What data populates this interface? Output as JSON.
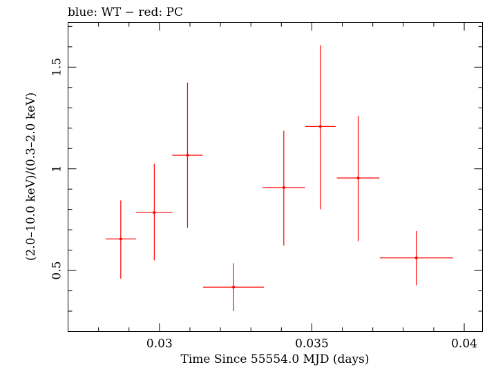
{
  "header": {
    "title": "blue: WT − red: PC"
  },
  "chart_data": {
    "type": "scatter",
    "title": "blue: WT − red: PC",
    "xlabel": "Time Since 55554.0 MJD (days)",
    "ylabel": "(2.0–10.0 keV)/(0.3–2.0 keV)",
    "xlim": [
      0.027,
      0.0406
    ],
    "ylim": [
      0.2,
      1.72
    ],
    "x_ticks": [
      {
        "value": 0.03,
        "label": "0.03"
      },
      {
        "value": 0.035,
        "label": "0.035"
      },
      {
        "value": 0.04,
        "label": "0.04"
      }
    ],
    "y_ticks": [
      {
        "value": 0.5,
        "label": "0.5"
      },
      {
        "value": 1.0,
        "label": "1"
      },
      {
        "value": 1.5,
        "label": "1.5"
      }
    ],
    "grid": false,
    "series": [
      {
        "color": "#ff0000",
        "points": [
          {
            "x": 0.02873,
            "y": 0.655,
            "xerr_low": 0.0005,
            "xerr_high": 0.0005,
            "yerr_low": 0.195,
            "yerr_high": 0.19
          },
          {
            "x": 0.02983,
            "y": 0.785,
            "xerr_low": 0.0006,
            "xerr_high": 0.0006,
            "yerr_low": 0.235,
            "yerr_high": 0.24
          },
          {
            "x": 0.03092,
            "y": 1.067,
            "xerr_low": 0.0005,
            "xerr_high": 0.0005,
            "yerr_low": 0.357,
            "yerr_high": 0.357
          },
          {
            "x": 0.03243,
            "y": 0.418,
            "xerr_low": 0.001,
            "xerr_high": 0.001,
            "yerr_low": 0.118,
            "yerr_high": 0.118
          },
          {
            "x": 0.03408,
            "y": 0.908,
            "xerr_low": 0.0007,
            "xerr_high": 0.0007,
            "yerr_low": 0.285,
            "yerr_high": 0.279
          },
          {
            "x": 0.03528,
            "y": 1.208,
            "xerr_low": 0.0005,
            "xerr_high": 0.0005,
            "yerr_low": 0.408,
            "yerr_high": 0.4
          },
          {
            "x": 0.03652,
            "y": 0.955,
            "xerr_low": 0.0007,
            "xerr_high": 0.0007,
            "yerr_low": 0.31,
            "yerr_high": 0.305
          },
          {
            "x": 0.03843,
            "y": 0.562,
            "xerr_low": 0.0012,
            "xerr_high": 0.0012,
            "yerr_low": 0.135,
            "yerr_high": 0.132
          }
        ]
      }
    ]
  }
}
